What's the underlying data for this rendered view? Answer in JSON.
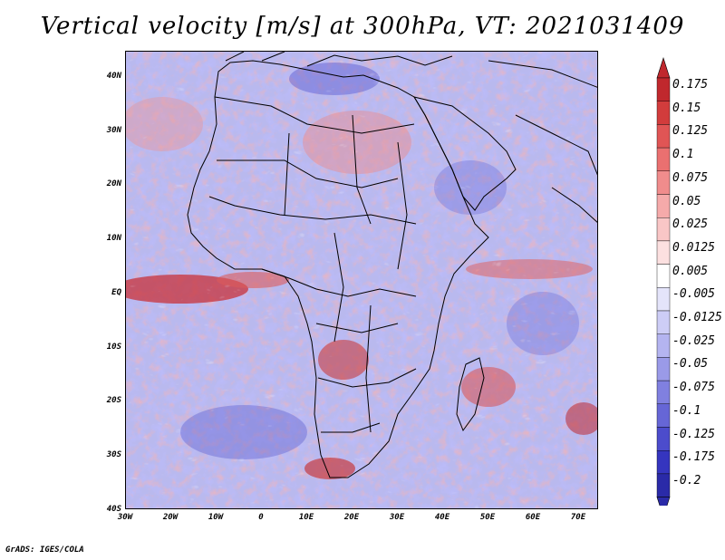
{
  "title": "Vertical velocity [m/s] at 300hPa, VT: 2021031409",
  "credit": "GrADS: IGES/COLA",
  "map": {
    "region": "Africa",
    "lat_range": [
      -40,
      45
    ],
    "lon_range": [
      -30,
      75
    ],
    "lat_labels": [
      "40N",
      "30N",
      "20N",
      "10N",
      "EQ",
      "10S",
      "20S",
      "30S",
      "40S"
    ],
    "lon_labels": [
      "30W",
      "20W",
      "10W",
      "0",
      "10E",
      "20E",
      "30E",
      "40E",
      "50E",
      "60E",
      "70E"
    ]
  },
  "colorbar": {
    "labels": [
      "0.175",
      "0.15",
      "0.125",
      "0.1",
      "0.075",
      "0.05",
      "0.025",
      "0.0125",
      "0.005",
      "-0.005",
      "-0.0125",
      "-0.025",
      "-0.05",
      "-0.075",
      "-0.1",
      "-0.125",
      "-0.175",
      "-0.2"
    ],
    "colors": [
      "#c0282d",
      "#d23c3c",
      "#e05555",
      "#ea7070",
      "#f08c8c",
      "#f5aaaa",
      "#f9c6c6",
      "#fce0e0",
      "#ffffff",
      "#e4e4fa",
      "#cdcdf6",
      "#b4b4f0",
      "#9a9ae8",
      "#8080e0",
      "#6666d6",
      "#4c4ccc",
      "#3535bf",
      "#2a2aa8"
    ]
  }
}
